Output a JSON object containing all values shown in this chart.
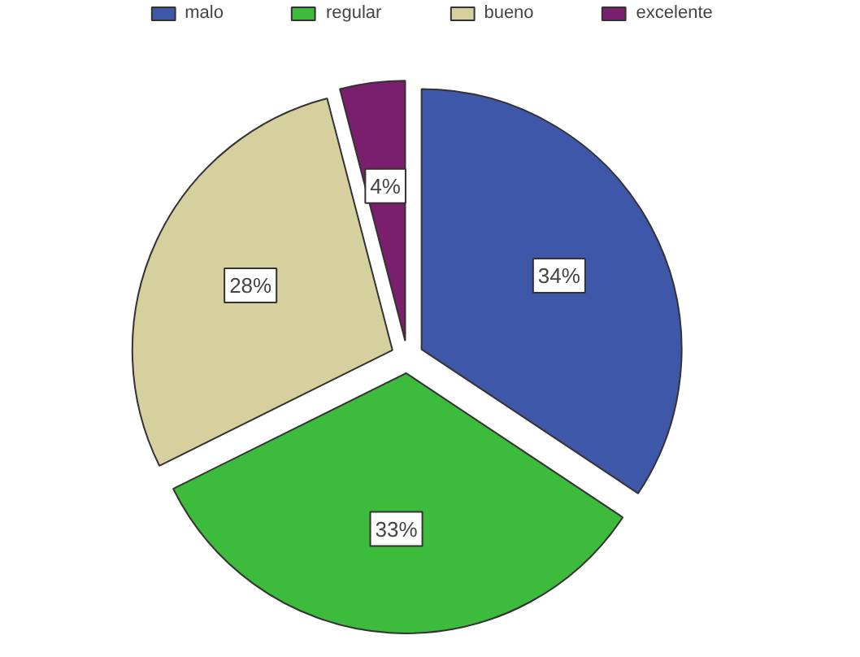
{
  "chart_data": {
    "type": "pie",
    "categories": [
      "malo",
      "regular",
      "bueno",
      "excelente"
    ],
    "values": [
      34,
      33,
      28,
      4
    ],
    "colors": [
      "#3f57a8",
      "#3dbb3d",
      "#d6cf9e",
      "#7a1f6e"
    ],
    "value_labels": [
      "34%",
      "33%",
      "28%",
      "4%"
    ],
    "legend": "top"
  }
}
